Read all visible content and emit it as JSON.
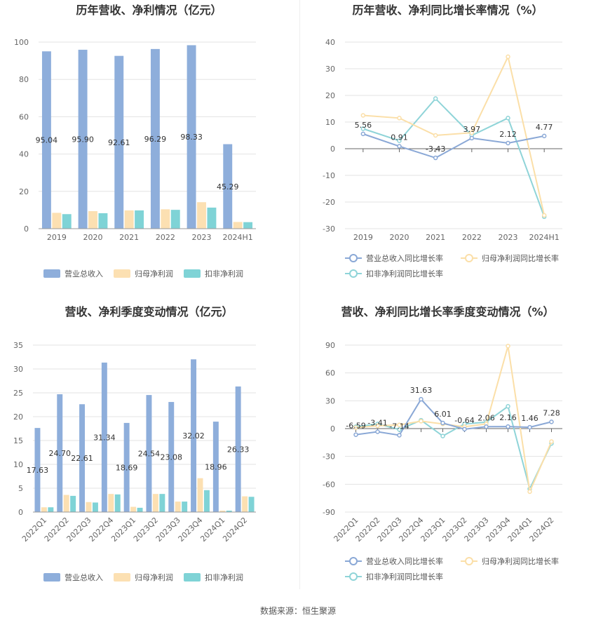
{
  "source": "数据来源：恒生聚源",
  "colors": {
    "revenue": "#8eaedb",
    "netprofit": "#fce0b2",
    "deducted": "#7fd3d6",
    "rev_growth": "#8aa8d6",
    "np_growth": "#fbdfa8",
    "dd_growth": "#8fd4d8"
  },
  "chart_data": [
    {
      "type": "bar",
      "title": "历年营收、净利情况（亿元）",
      "categories": [
        "2019",
        "2020",
        "2021",
        "2022",
        "2023",
        "2024H1"
      ],
      "ylim": [
        0,
        100
      ],
      "yticks": [
        0,
        20,
        40,
        60,
        80,
        100
      ],
      "series": [
        {
          "name": "营业总收入",
          "values": [
            95.04,
            95.9,
            92.61,
            96.29,
            98.33,
            45.29
          ],
          "labels": [
            "95.04",
            "95.90",
            "92.61",
            "96.29",
            "98.33",
            "45.29"
          ]
        },
        {
          "name": "归母净利润",
          "values": [
            8.5,
            9.4,
            9.8,
            10.4,
            14.2,
            3.6
          ]
        },
        {
          "name": "扣非净利润",
          "values": [
            7.8,
            8.3,
            9.8,
            10.1,
            11.3,
            3.5
          ]
        }
      ]
    },
    {
      "type": "line",
      "title": "历年营收、净利同比增长率情况（%）",
      "categories": [
        "2019",
        "2020",
        "2021",
        "2022",
        "2023",
        "2024H1"
      ],
      "ylim": [
        -30,
        40
      ],
      "yticks": [
        -30,
        -20,
        -10,
        0,
        10,
        20,
        30,
        40
      ],
      "series": [
        {
          "name": "营业总收入同比增长率",
          "values": [
            5.56,
            0.91,
            -3.43,
            3.97,
            2.12,
            4.77
          ],
          "labels": [
            "5.56",
            "0.91",
            "-3.43",
            "3.97",
            "2.12",
            "4.77"
          ]
        },
        {
          "name": "归母净利润同比增长率",
          "values": [
            12.5,
            11.5,
            5.0,
            6.0,
            34.5,
            -25.0
          ]
        },
        {
          "name": "扣非净利润同比增长率",
          "values": [
            7.5,
            3.0,
            18.8,
            5.0,
            11.5,
            -25.5
          ]
        }
      ]
    },
    {
      "type": "bar",
      "title": "营收、净利季度变动情况（亿元）",
      "categories": [
        "2022Q1",
        "2022Q2",
        "2022Q3",
        "2022Q4",
        "2023Q1",
        "2023Q2",
        "2023Q3",
        "2023Q4",
        "2024Q1",
        "2024Q2"
      ],
      "ylim": [
        0,
        35
      ],
      "yticks": [
        0,
        5,
        10,
        15,
        20,
        25,
        30,
        35
      ],
      "series": [
        {
          "name": "营业总收入",
          "values": [
            17.63,
            24.7,
            22.61,
            31.34,
            18.69,
            24.54,
            23.08,
            32.02,
            18.96,
            26.33
          ],
          "labels": [
            "17.63",
            "24.70",
            "22.61",
            "31.34",
            "18.69",
            "24.54",
            "23.08",
            "32.02",
            "18.96",
            "26.33"
          ]
        },
        {
          "name": "归母净利润",
          "values": [
            1.0,
            3.6,
            2.1,
            3.8,
            1.1,
            3.8,
            2.2,
            7.1,
            0.3,
            3.3
          ]
        },
        {
          "name": "扣非净利润",
          "values": [
            1.0,
            3.4,
            2.0,
            3.7,
            0.9,
            3.8,
            2.2,
            4.6,
            0.3,
            3.2
          ]
        }
      ]
    },
    {
      "type": "line",
      "title": "营收、净利同比增长率季度变动情况（%）",
      "categories": [
        "2022Q1",
        "2022Q2",
        "2022Q3",
        "2022Q4",
        "2023Q1",
        "2023Q2",
        "2023Q3",
        "2023Q4",
        "2024Q1",
        "2024Q2"
      ],
      "ylim": [
        -90,
        90
      ],
      "yticks": [
        -90,
        -60,
        -30,
        0,
        30,
        60,
        90
      ],
      "series": [
        {
          "name": "营业总收入同比增长率",
          "values": [
            -6.59,
            -3.41,
            -7.14,
            31.63,
            6.01,
            -0.64,
            2.06,
            2.16,
            1.46,
            7.28
          ],
          "labels": [
            "-6.59",
            "-3.41",
            "-7.14",
            "31.63",
            "6.01",
            "-0.64",
            "2.06",
            "2.16",
            "1.46",
            "7.28"
          ]
        },
        {
          "name": "归母净利润同比增长率",
          "values": [
            1.0,
            3.0,
            4.0,
            8.0,
            5.0,
            2.0,
            5.0,
            89.0,
            -68.0,
            -14.0
          ]
        },
        {
          "name": "扣非净利润同比增长率",
          "values": [
            2.0,
            5.0,
            -1.0,
            9.0,
            -8.0,
            5.0,
            7.0,
            24.0,
            -65.0,
            -16.0
          ]
        }
      ]
    }
  ]
}
